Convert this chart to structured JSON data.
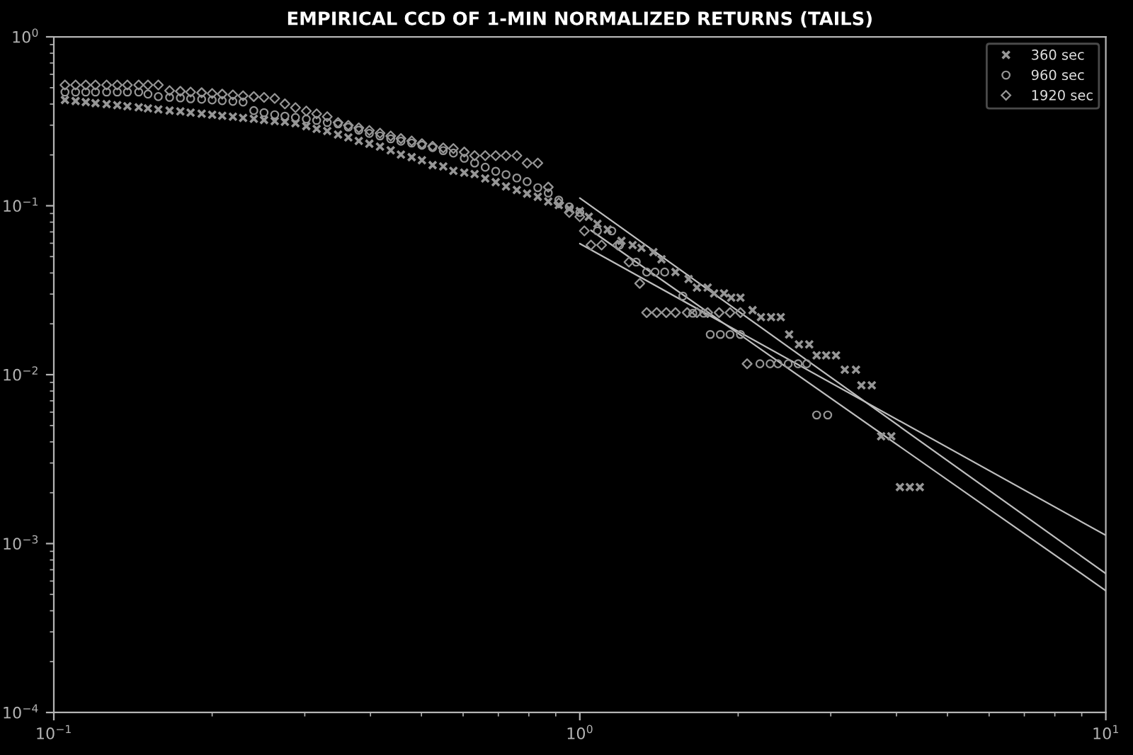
{
  "chart_data": {
    "type": "scatter",
    "title": "EMPIRICAL CCD OF 1-MIN NORMALIZED RETURNS (TAILS)",
    "log": "xy",
    "legend": "top right",
    "xlim": [
      0.1,
      10
    ],
    "ylim": [
      0.0001,
      1
    ],
    "xticks": [
      {
        "value": 0.1,
        "label": "10$^{−1}$"
      },
      {
        "value": 1,
        "label": "10$^{0}$"
      },
      {
        "value": 10,
        "label": "10$^{1}$"
      }
    ],
    "yticks": [
      {
        "value": 0.0001,
        "label": "10$^{−4}$"
      },
      {
        "value": 0.001,
        "label": "10$^{−3}$"
      },
      {
        "value": 0.01,
        "label": "10$^{−2}$"
      },
      {
        "value": 0.1,
        "label": "10$^{−1}$"
      },
      {
        "value": 1,
        "label": "10$^{0}$"
      }
    ],
    "series": [
      {
        "name": "360 sec",
        "color": "#969696",
        "marker": "cross",
        "x": [
          0.105,
          0.11,
          0.115,
          0.12,
          0.126,
          0.132,
          0.138,
          0.145,
          0.151,
          0.158,
          0.166,
          0.174,
          0.182,
          0.191,
          0.2,
          0.209,
          0.219,
          0.229,
          0.24,
          0.251,
          0.263,
          0.275,
          0.288,
          0.302,
          0.316,
          0.331,
          0.347,
          0.363,
          0.38,
          0.398,
          0.417,
          0.437,
          0.457,
          0.479,
          0.501,
          0.525,
          0.55,
          0.575,
          0.603,
          0.631,
          0.661,
          0.692,
          0.724,
          0.759,
          0.794,
          0.832,
          0.871,
          0.912,
          0.955,
          1.0,
          1.04,
          1.08,
          1.13,
          1.2,
          1.26,
          1.31,
          1.38,
          1.43,
          1.52,
          1.61,
          1.67,
          1.75,
          1.8,
          1.88,
          1.94,
          2.02,
          2.13,
          2.21,
          2.31,
          2.41,
          2.5,
          2.61,
          2.73,
          2.82,
          2.94,
          3.07,
          3.19,
          3.35,
          3.43,
          3.59,
          3.74,
          3.91,
          4.06,
          4.24,
          4.43
        ],
        "values": [
          0.423,
          0.417,
          0.411,
          0.405,
          0.4,
          0.394,
          0.388,
          0.383,
          0.377,
          0.372,
          0.366,
          0.362,
          0.356,
          0.351,
          0.346,
          0.341,
          0.337,
          0.331,
          0.327,
          0.322,
          0.317,
          0.314,
          0.308,
          0.296,
          0.285,
          0.277,
          0.264,
          0.254,
          0.242,
          0.233,
          0.224,
          0.213,
          0.201,
          0.194,
          0.186,
          0.174,
          0.171,
          0.161,
          0.157,
          0.154,
          0.145,
          0.138,
          0.13,
          0.124,
          0.118,
          0.113,
          0.106,
          0.101,
          0.0961,
          0.093,
          0.0861,
          0.0782,
          0.0724,
          0.062,
          0.0585,
          0.0563,
          0.0531,
          0.0482,
          0.0405,
          0.0368,
          0.0328,
          0.0328,
          0.0303,
          0.0303,
          0.0286,
          0.0286,
          0.0241,
          0.0219,
          0.0219,
          0.0219,
          0.0173,
          0.0151,
          0.0151,
          0.013,
          0.013,
          0.013,
          0.0107,
          0.0107,
          0.00865,
          0.00865,
          0.00432,
          0.00432,
          0.00216,
          0.00216,
          0.00216
        ]
      },
      {
        "name": "960 sec",
        "color": "#969696",
        "marker": "circle",
        "x": [
          0.105,
          0.11,
          0.115,
          0.12,
          0.126,
          0.132,
          0.138,
          0.145,
          0.151,
          0.158,
          0.166,
          0.174,
          0.182,
          0.191,
          0.2,
          0.209,
          0.219,
          0.229,
          0.24,
          0.251,
          0.263,
          0.275,
          0.288,
          0.302,
          0.316,
          0.331,
          0.347,
          0.363,
          0.38,
          0.398,
          0.417,
          0.437,
          0.457,
          0.479,
          0.501,
          0.525,
          0.55,
          0.575,
          0.603,
          0.631,
          0.661,
          0.692,
          0.724,
          0.759,
          0.794,
          0.832,
          0.871,
          0.912,
          0.955,
          1.0,
          1.08,
          1.15,
          1.19,
          1.28,
          1.34,
          1.39,
          1.45,
          1.57,
          1.64,
          1.72,
          1.77,
          1.85,
          1.93,
          2.02,
          2.2,
          2.3,
          2.38,
          2.49,
          2.6,
          2.7,
          2.82,
          2.96
        ],
        "values": [
          0.471,
          0.471,
          0.471,
          0.471,
          0.471,
          0.471,
          0.471,
          0.471,
          0.458,
          0.443,
          0.438,
          0.435,
          0.43,
          0.427,
          0.423,
          0.419,
          0.415,
          0.411,
          0.366,
          0.356,
          0.346,
          0.339,
          0.333,
          0.326,
          0.32,
          0.311,
          0.305,
          0.292,
          0.28,
          0.268,
          0.259,
          0.249,
          0.241,
          0.235,
          0.228,
          0.221,
          0.212,
          0.205,
          0.191,
          0.179,
          0.169,
          0.16,
          0.153,
          0.146,
          0.139,
          0.128,
          0.119,
          0.108,
          0.0986,
          0.0912,
          0.071,
          0.071,
          0.0585,
          0.0464,
          0.0405,
          0.0405,
          0.0405,
          0.0292,
          0.0231,
          0.0231,
          0.0173,
          0.0173,
          0.0173,
          0.0173,
          0.0116,
          0.0116,
          0.0116,
          0.0116,
          0.0116,
          0.0116,
          0.00577,
          0.00577
        ]
      },
      {
        "name": "1920 sec",
        "color": "#969696",
        "marker": "diamond",
        "x": [
          0.105,
          0.11,
          0.115,
          0.12,
          0.126,
          0.132,
          0.138,
          0.145,
          0.151,
          0.158,
          0.166,
          0.174,
          0.182,
          0.191,
          0.2,
          0.209,
          0.219,
          0.229,
          0.24,
          0.251,
          0.263,
          0.275,
          0.288,
          0.302,
          0.316,
          0.331,
          0.347,
          0.363,
          0.38,
          0.398,
          0.417,
          0.437,
          0.457,
          0.479,
          0.501,
          0.525,
          0.55,
          0.575,
          0.603,
          0.631,
          0.661,
          0.692,
          0.724,
          0.759,
          0.794,
          0.832,
          0.871,
          0.912,
          0.955,
          1.0,
          1.02,
          1.05,
          1.1,
          1.18,
          1.24,
          1.3,
          1.34,
          1.4,
          1.46,
          1.52,
          1.6,
          1.67,
          1.75,
          1.84,
          1.93,
          2.02,
          2.08
        ],
        "values": [
          0.519,
          0.519,
          0.519,
          0.519,
          0.519,
          0.519,
          0.519,
          0.519,
          0.519,
          0.519,
          0.48,
          0.476,
          0.471,
          0.467,
          0.462,
          0.458,
          0.453,
          0.448,
          0.443,
          0.438,
          0.432,
          0.401,
          0.381,
          0.364,
          0.35,
          0.337,
          0.311,
          0.299,
          0.289,
          0.279,
          0.269,
          0.259,
          0.25,
          0.242,
          0.233,
          0.225,
          0.22,
          0.218,
          0.208,
          0.198,
          0.198,
          0.198,
          0.198,
          0.198,
          0.179,
          0.179,
          0.129,
          0.104,
          0.0912,
          0.0861,
          0.071,
          0.0585,
          0.0585,
          0.0585,
          0.0464,
          0.0347,
          0.0233,
          0.0233,
          0.0233,
          0.0233,
          0.0233,
          0.0233,
          0.0233,
          0.0233,
          0.0233,
          0.0233,
          0.0116
        ]
      },
      {
        "type": "line",
        "color": "#bebebe",
        "marker": "none",
        "x": [
          1,
          10
        ],
        "values": [
          0.111,
          0.000664
        ]
      },
      {
        "type": "line",
        "color": "#bebebe",
        "marker": "none",
        "x": [
          1.05,
          10
        ],
        "values": [
          0.0715,
          0.000526
        ]
      },
      {
        "type": "line",
        "color": "#bebebe",
        "marker": "none",
        "x": [
          1,
          10
        ],
        "values": [
          0.0597,
          0.00112
        ]
      }
    ]
  }
}
